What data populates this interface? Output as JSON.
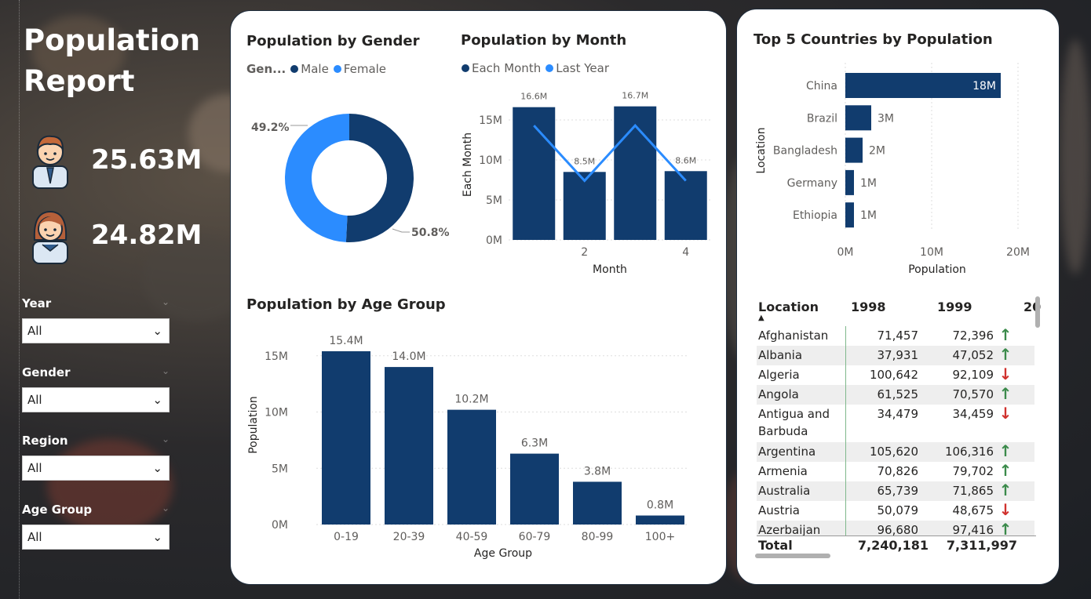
{
  "report": {
    "title_line1": "Population",
    "title_line2": "Report",
    "kpis": [
      {
        "icon": "male-avatar-icon",
        "value": "25.63M"
      },
      {
        "icon": "female-avatar-icon",
        "value": "24.82M"
      }
    ]
  },
  "filters": [
    {
      "label": "Year",
      "value": "All"
    },
    {
      "label": "Gender",
      "value": "All"
    },
    {
      "label": "Region",
      "value": "All"
    },
    {
      "label": "Age Group",
      "value": "All"
    }
  ],
  "colors": {
    "dark": "#113c6e",
    "light": "#2b8cff",
    "up": "#3a8a4a",
    "down": "#d0312d"
  },
  "chart_data": [
    {
      "type": "pie",
      "title": "Population by Gender",
      "legend_title": "Gen...",
      "categories": [
        "Male",
        "Female"
      ],
      "values": [
        50.8,
        49.2
      ],
      "labels": [
        "50.8%",
        "49.2%"
      ],
      "legend_placement": "top-left"
    },
    {
      "type": "bar",
      "title": "Population by Month",
      "x": [
        1,
        2,
        3,
        4
      ],
      "x_ticks": [
        "2",
        "4"
      ],
      "series": [
        {
          "name": "Each Month",
          "type": "bar",
          "values": [
            16.6,
            8.5,
            16.7,
            8.6
          ],
          "labels": [
            "16.6M",
            "8.5M",
            "16.7M",
            "8.6M"
          ]
        },
        {
          "name": "Last Year",
          "type": "line",
          "values": [
            14.3,
            7.4,
            14.3,
            7.4
          ]
        }
      ],
      "xlabel": "Month",
      "ylabel": "Each Month",
      "ylim": [
        0,
        17
      ],
      "y_ticks": [
        "0M",
        "5M",
        "10M",
        "15M"
      ],
      "y_tick_values": [
        0,
        5,
        10,
        15
      ],
      "grid": true,
      "legend_placement": "top-left"
    },
    {
      "type": "bar",
      "title": "Population by Age Group",
      "categories": [
        "0-19",
        "20-39",
        "40-59",
        "60-79",
        "80-99",
        "100+"
      ],
      "values": [
        15.4,
        14.0,
        10.2,
        6.3,
        3.8,
        0.8
      ],
      "labels": [
        "15.4M",
        "14.0M",
        "10.2M",
        "6.3M",
        "3.8M",
        "0.8M"
      ],
      "xlabel": "Age Group",
      "ylabel": "Population",
      "ylim": [
        0,
        16.5
      ],
      "y_ticks": [
        "0M",
        "5M",
        "10M",
        "15M"
      ],
      "y_tick_values": [
        0,
        5,
        10,
        15
      ],
      "grid": true
    },
    {
      "type": "bar",
      "orientation": "horizontal",
      "title": "Top 5 Countries by Population",
      "categories": [
        "China",
        "Brazil",
        "Bangladesh",
        "Germany",
        "Ethiopia"
      ],
      "values": [
        18,
        3,
        2,
        1,
        1
      ],
      "labels": [
        "18M",
        "3M",
        "2M",
        "1M",
        "1M"
      ],
      "xlabel": "Population",
      "ylabel": "Location",
      "xlim": [
        0,
        20
      ],
      "x_ticks": [
        "0M",
        "10M",
        "20M"
      ],
      "x_tick_values": [
        0,
        10,
        20
      ],
      "grid": true
    }
  ],
  "table": {
    "headers": [
      "Location",
      "1998",
      "1999",
      "20"
    ],
    "rows": [
      {
        "location": "Afghanistan",
        "y1998": "71,457",
        "y1999": "72,396",
        "trend": "up"
      },
      {
        "location": "Albania",
        "y1998": "37,931",
        "y1999": "47,052",
        "trend": "up"
      },
      {
        "location": "Algeria",
        "y1998": "100,642",
        "y1999": "92,109",
        "trend": "down"
      },
      {
        "location": "Angola",
        "y1998": "61,525",
        "y1999": "70,570",
        "trend": "up"
      },
      {
        "location": "Antigua and Barbuda",
        "y1998": "34,479",
        "y1999": "34,459",
        "trend": "down"
      },
      {
        "location": "Argentina",
        "y1998": "105,620",
        "y1999": "106,316",
        "trend": "up"
      },
      {
        "location": "Armenia",
        "y1998": "70,826",
        "y1999": "79,702",
        "trend": "up"
      },
      {
        "location": "Australia",
        "y1998": "65,739",
        "y1999": "71,865",
        "trend": "up"
      },
      {
        "location": "Austria",
        "y1998": "50,079",
        "y1999": "48,675",
        "trend": "down"
      },
      {
        "location": "Azerbaijan",
        "y1998": "96,680",
        "y1999": "97,416",
        "trend": "up"
      }
    ],
    "total": {
      "label": "Total",
      "y1998": "7,240,181",
      "y1999": "7,311,997"
    }
  }
}
